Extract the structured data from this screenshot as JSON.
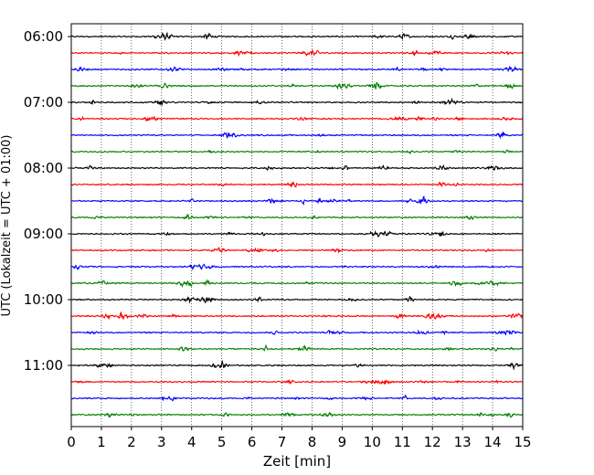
{
  "chart_data": {
    "type": "line",
    "subtype": "helicorder",
    "title": "",
    "xlabel": "Zeit  [min]",
    "ylabel": "UTC (Lokalzeit = UTC + 01:00)",
    "xlim": [
      0,
      15
    ],
    "x_ticks": [
      0,
      1,
      2,
      3,
      4,
      5,
      6,
      7,
      8,
      9,
      10,
      11,
      12,
      13,
      14,
      15
    ],
    "x_tick_labels": [
      "0",
      "1",
      "2",
      "3",
      "4",
      "5",
      "6",
      "7",
      "8",
      "9",
      "10",
      "11",
      "12",
      "13",
      "14",
      "15"
    ],
    "y_tick_labels": [
      "06:00",
      "07:00",
      "08:00",
      "09:00",
      "10:00",
      "11:00"
    ],
    "trace_minutes": 15,
    "trace_count": 24,
    "trace_colors": [
      "#000000",
      "#ff0000",
      "#0000ff",
      "#008000"
    ],
    "vertical_grid": "dotted",
    "legend": "none",
    "trace_start_times": [
      "06:00",
      "06:15",
      "06:30",
      "06:45",
      "07:00",
      "07:15",
      "07:30",
      "07:45",
      "08:00",
      "08:15",
      "08:30",
      "08:45",
      "09:00",
      "09:15",
      "09:30",
      "09:45",
      "10:00",
      "10:15",
      "10:30",
      "10:45",
      "11:00",
      "11:15",
      "11:30",
      "11:45"
    ]
  }
}
